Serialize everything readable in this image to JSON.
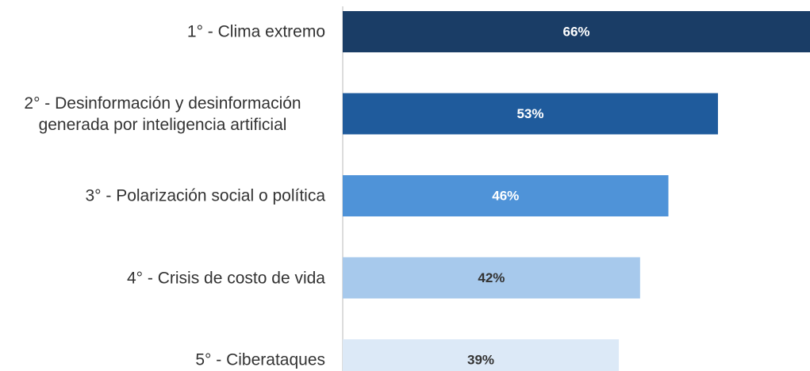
{
  "chart_data": {
    "type": "barh",
    "categories": [
      "1° - Clima extremo",
      "2° - Desinformación y desinformación generada por inteligencia artificial",
      "3° - Polarización social o política",
      "4° - Crisis de costo de vida",
      "5° - Ciberataques"
    ],
    "values": [
      66,
      53,
      46,
      42,
      39
    ],
    "value_labels": [
      "66%",
      "53%",
      "46%",
      "42%",
      "39%"
    ],
    "colors": [
      "#1a3d66",
      "#1f5b9c",
      "#4f93d8",
      "#a7c9ec",
      "#dce9f7"
    ]
  }
}
